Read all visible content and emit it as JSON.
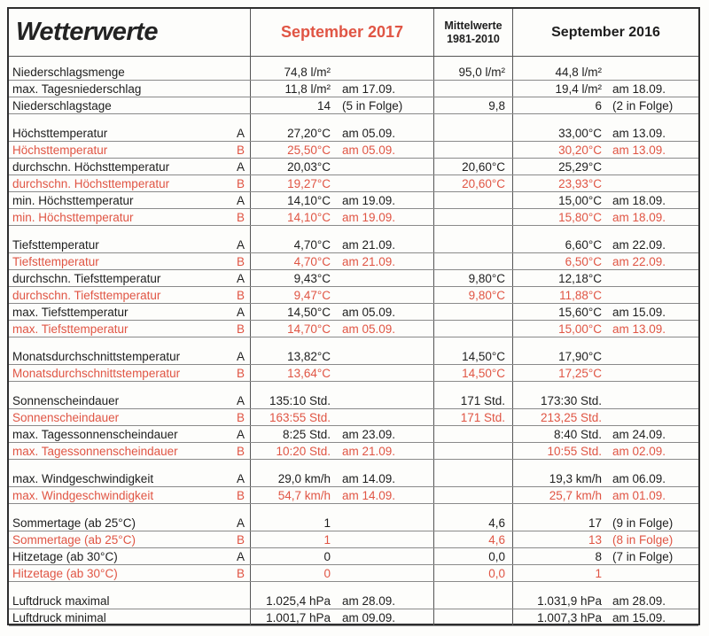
{
  "header": {
    "title": "Wetterwerte",
    "col_2017": "September 2017",
    "col_mittel_line1": "Mittelwerte",
    "col_mittel_line2": "1981-2010",
    "col_2016": "September 2016"
  },
  "colors": {
    "accent_red": "#e05544",
    "text_black": "#1e1e1e",
    "grid_line": "#8a8a8a"
  },
  "rows": [
    {
      "type": "gap"
    },
    {
      "label": "Niederschlagsmenge",
      "ab": "",
      "v2017": "74,8 l/m²",
      "d2017": "",
      "mittel": "95,0 l/m²",
      "v2016": "44,8 l/m²",
      "d2016": "",
      "red": false
    },
    {
      "label": "max. Tagesniederschlag",
      "ab": "",
      "v2017": "11,8 l/m²",
      "d2017": "am 17.09.",
      "mittel": "",
      "v2016": "19,4 l/m²",
      "d2016": "am 18.09.",
      "red": false
    },
    {
      "label": "Niederschlagstage",
      "ab": "",
      "v2017": "14",
      "d2017": "(5 in Folge)",
      "mittel": "9,8",
      "v2016": "6",
      "d2016": "(2 in Folge)",
      "red": false
    },
    {
      "type": "sep"
    },
    {
      "label": "Höchsttemperatur",
      "ab": "A",
      "v2017": "27,20°C",
      "d2017": "am 05.09.",
      "mittel": "",
      "v2016": "33,00°C",
      "d2016": "am 13.09.",
      "red": false
    },
    {
      "label": "Höchsttemperatur",
      "ab": "B",
      "v2017": "25,50°C",
      "d2017": "am 05.09.",
      "mittel": "",
      "v2016": "30,20°C",
      "d2016": "am 13.09.",
      "red": true
    },
    {
      "label": "durchschn. Höchsttemperatur",
      "ab": "A",
      "v2017": "20,03°C",
      "d2017": "",
      "mittel": "20,60°C",
      "v2016": "25,29°C",
      "d2016": "",
      "red": false
    },
    {
      "label": "durchschn. Höchsttemperatur",
      "ab": "B",
      "v2017": "19,27°C",
      "d2017": "",
      "mittel": "20,60°C",
      "v2016": "23,93°C",
      "d2016": "",
      "red": true
    },
    {
      "label": "min. Höchsttemperatur",
      "ab": "A",
      "v2017": "14,10°C",
      "d2017": "am 19.09.",
      "mittel": "",
      "v2016": "15,00°C",
      "d2016": "am 18.09.",
      "red": false
    },
    {
      "label": "min. Höchsttemperatur",
      "ab": "B",
      "v2017": "14,10°C",
      "d2017": "am 19.09.",
      "mittel": "",
      "v2016": "15,80°C",
      "d2016": "am 18.09.",
      "red": true
    },
    {
      "type": "sep"
    },
    {
      "label": "Tiefsttemperatur",
      "ab": "A",
      "v2017": "4,70°C",
      "d2017": "am 21.09.",
      "mittel": "",
      "v2016": "6,60°C",
      "d2016": "am 22.09.",
      "red": false
    },
    {
      "label": "Tiefsttemperatur",
      "ab": "B",
      "v2017": "4,70°C",
      "d2017": "am 21.09.",
      "mittel": "",
      "v2016": "6,50°C",
      "d2016": "am 22.09.",
      "red": true
    },
    {
      "label": "durchschn. Tiefsttemperatur",
      "ab": "A",
      "v2017": "9,43°C",
      "d2017": "",
      "mittel": "9,80°C",
      "v2016": "12,18°C",
      "d2016": "",
      "red": false
    },
    {
      "label": "durchschn. Tiefsttemperatur",
      "ab": "B",
      "v2017": "9,47°C",
      "d2017": "",
      "mittel": "9,80°C",
      "v2016": "11,88°C",
      "d2016": "",
      "red": true
    },
    {
      "label": "max. Tiefsttemperatur",
      "ab": "A",
      "v2017": "14,50°C",
      "d2017": "am 05.09.",
      "mittel": "",
      "v2016": "15,60°C",
      "d2016": "am 15.09.",
      "red": false
    },
    {
      "label": "max. Tiefsttemperatur",
      "ab": "B",
      "v2017": "14,70°C",
      "d2017": "am 05.09.",
      "mittel": "",
      "v2016": "15,00°C",
      "d2016": "am 13.09.",
      "red": true
    },
    {
      "type": "sep"
    },
    {
      "label": "Monatsdurchschnittstemperatur",
      "ab": "A",
      "v2017": "13,82°C",
      "d2017": "",
      "mittel": "14,50°C",
      "v2016": "17,90°C",
      "d2016": "",
      "red": false
    },
    {
      "label": "Monatsdurchschnittstemperatur",
      "ab": "B",
      "v2017": "13,64°C",
      "d2017": "",
      "mittel": "14,50°C",
      "v2016": "17,25°C",
      "d2016": "",
      "red": true
    },
    {
      "type": "sep"
    },
    {
      "label": "Sonnenscheindauer",
      "ab": "A",
      "v2017": "135:10 Std.",
      "d2017": "",
      "mittel": "171 Std.",
      "v2016": "173:30 Std.",
      "d2016": "",
      "red": false
    },
    {
      "label": "Sonnenscheindauer",
      "ab": "B",
      "v2017": "163:55 Std.",
      "d2017": "",
      "mittel": "171 Std.",
      "v2016": "213,25 Std.",
      "d2016": "",
      "red": true
    },
    {
      "label": "max. Tagessonnenscheindauer",
      "ab": "A",
      "v2017": "8:25 Std.",
      "d2017": "am 23.09.",
      "mittel": "",
      "v2016": "8:40 Std.",
      "d2016": "am 24.09.",
      "red": false
    },
    {
      "label": "max. Tagessonnenscheindauer",
      "ab": "B",
      "v2017": "10:20 Std.",
      "d2017": "am 21.09.",
      "mittel": "",
      "v2016": "10:55 Std.",
      "d2016": "am 02.09.",
      "red": true
    },
    {
      "type": "sep"
    },
    {
      "label": "max. Windgeschwindigkeit",
      "ab": "A",
      "v2017": "29,0 km/h",
      "d2017": "am 14.09.",
      "mittel": "",
      "v2016": "19,3 km/h",
      "d2016": "am 06.09.",
      "red": false
    },
    {
      "label": "max. Windgeschwindigkeit",
      "ab": "B",
      "v2017": "54,7 km/h",
      "d2017": "am 14.09.",
      "mittel": "",
      "v2016": "25,7 km/h",
      "d2016": "am 01.09.",
      "red": true
    },
    {
      "type": "sep"
    },
    {
      "label": "Sommertage (ab 25°C)",
      "ab": "A",
      "v2017": "1",
      "d2017": "",
      "mittel": "4,6",
      "v2016": "17",
      "d2016": "(9 in Folge)",
      "red": false
    },
    {
      "label": "Sommertage (ab 25°C)",
      "ab": "B",
      "v2017": "1",
      "d2017": "",
      "mittel": "4,6",
      "v2016": "13",
      "d2016": "(8 in Folge)",
      "red": true
    },
    {
      "label": "Hitzetage (ab 30°C)",
      "ab": "A",
      "v2017": "0",
      "d2017": "",
      "mittel": "0,0",
      "v2016": "8",
      "d2016": "(7 in Folge)",
      "red": false
    },
    {
      "label": "Hitzetage (ab 30°C)",
      "ab": "B",
      "v2017": "0",
      "d2017": "",
      "mittel": "0,0",
      "v2016": "1",
      "d2016": "",
      "red": true
    },
    {
      "type": "sep"
    },
    {
      "label": "Luftdruck maximal",
      "ab": "",
      "v2017": "1.025,4 hPa",
      "d2017": "am 28.09.",
      "mittel": "",
      "v2016": "1.031,9 hPa",
      "d2016": "am 28.09.",
      "red": false
    },
    {
      "label": "Luftdruck minimal",
      "ab": "",
      "v2017": "1.001,7 hPa",
      "d2017": "am 09.09.",
      "mittel": "",
      "v2016": "1.007,3 hPa",
      "d2016": "am 15.09.",
      "red": false
    }
  ]
}
